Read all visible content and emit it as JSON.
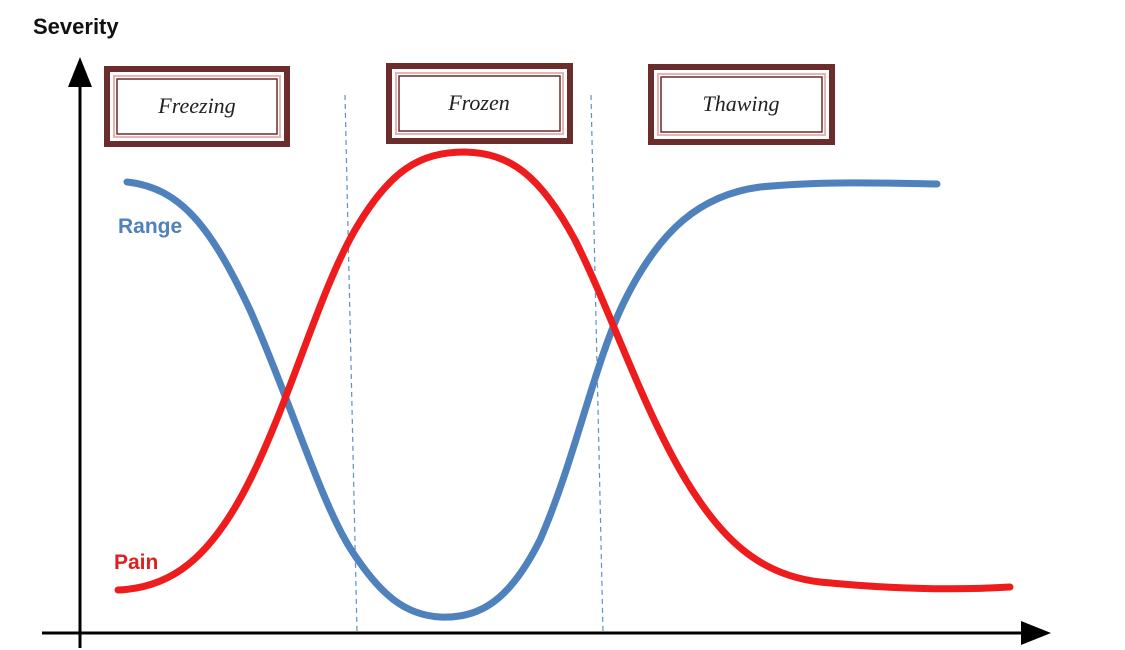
{
  "y_axis_label": "Severity",
  "phases": [
    {
      "label": "Freezing"
    },
    {
      "label": "Frozen"
    },
    {
      "label": "Thawing"
    }
  ],
  "curves": {
    "range": {
      "label": "Range",
      "color": "#4f81bd"
    },
    "pain": {
      "label": "Pain",
      "color": "#ee1c1c"
    }
  },
  "colors": {
    "box_border": "#6b2c2c",
    "divider": "#5b8fd0",
    "axis": "#000000"
  }
}
